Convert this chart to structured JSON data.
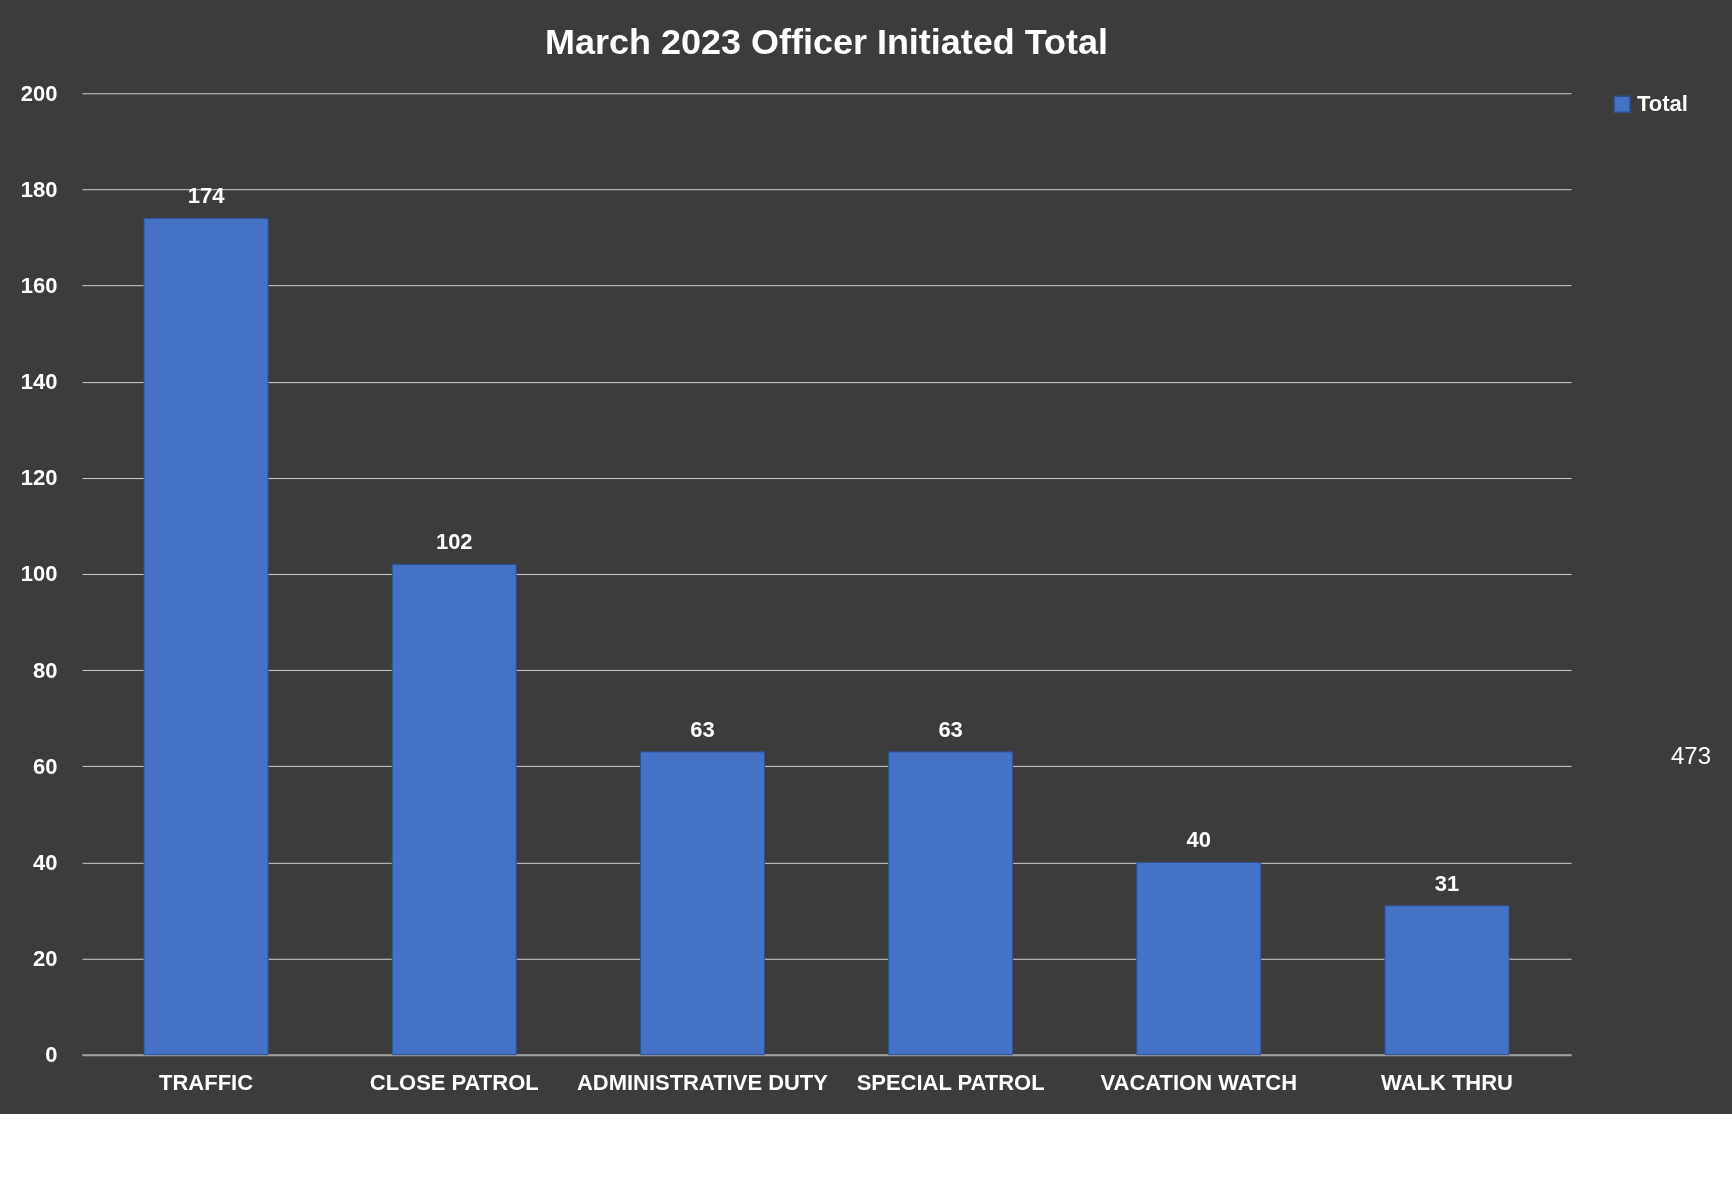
{
  "chart_data": {
    "type": "bar",
    "title": "March 2023 Officer Initiated Total",
    "categories": [
      "TRAFFIC",
      "CLOSE PATROL",
      "ADMINISTRATIVE DUTY",
      "SPECIAL PATROL",
      "VACATION WATCH",
      "WALK THRU"
    ],
    "series": [
      {
        "name": "Total",
        "color": "#4472c4",
        "values": [
          174,
          102,
          63,
          63,
          40,
          31
        ]
      }
    ],
    "ylim": [
      0,
      200
    ],
    "yticks": [
      0,
      20,
      40,
      60,
      80,
      100,
      120,
      140,
      160,
      180,
      200
    ],
    "grid": "y",
    "legend": "right",
    "data_labels": true,
    "annotations": [
      "473"
    ]
  }
}
